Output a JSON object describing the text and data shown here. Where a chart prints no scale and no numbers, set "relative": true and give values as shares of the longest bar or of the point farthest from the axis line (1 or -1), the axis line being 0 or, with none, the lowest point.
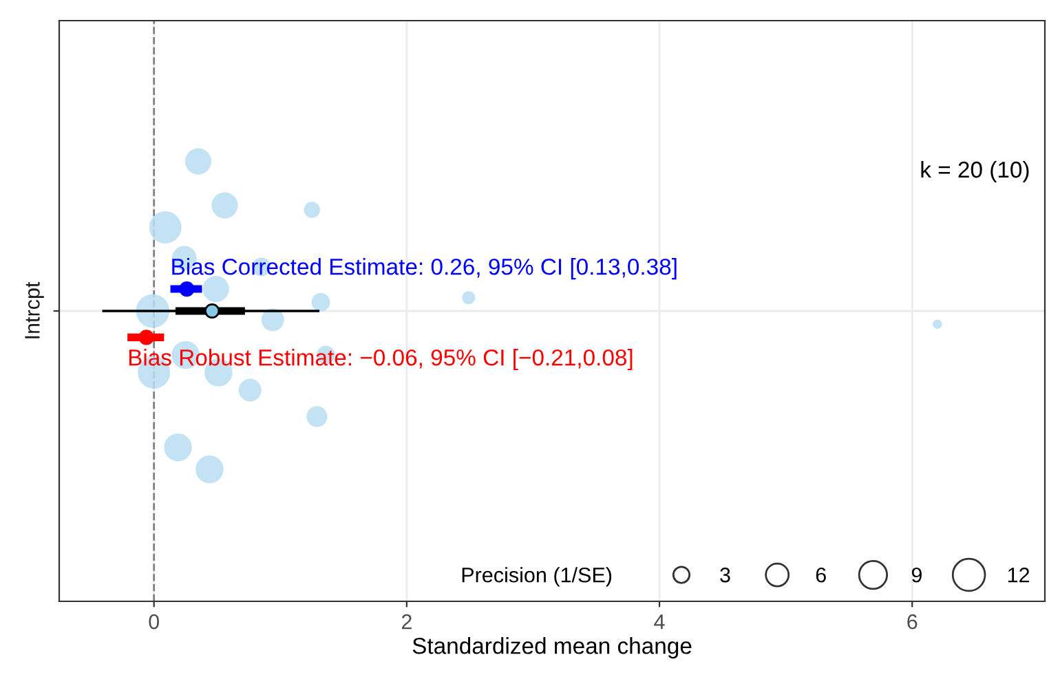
{
  "chart_data": {
    "type": "bubble",
    "xlabel": "Standardized mean change",
    "xlim": [
      -0.75,
      7.05
    ],
    "xticks": [
      0,
      2,
      4,
      6
    ],
    "relative": true,
    "grid": true,
    "legend_title": "Precision (1/SE)",
    "size_legend": [
      3,
      6,
      9,
      12
    ],
    "series": [
      {
        "color": "#b8def2",
        "x": [
          0.35,
          0.56,
          1.25,
          0.09,
          0.24,
          0.85,
          0.49,
          1.32,
          -0.01,
          0.94,
          1.36,
          0.25,
          0.0,
          0.51,
          0.76,
          1.29,
          0.19,
          0.44,
          2.49,
          6.2
        ],
        "values": [
          1.0,
          0.9,
          0.89,
          0.85,
          0.78,
          0.76,
          0.71,
          0.68,
          0.66,
          0.64,
          0.56,
          0.56,
          0.52,
          0.52,
          0.48,
          0.42,
          0.35,
          0.3,
          0.69,
          0.63
        ],
        "sizes": [
          8,
          8,
          3,
          12,
          7,
          4,
          8,
          4,
          13,
          6,
          4,
          9,
          12,
          9,
          6,
          5,
          9,
          9,
          2,
          1
        ]
      },
      {
        "type": "line",
        "color": "#000000",
        "x": [
          -0.4,
          1.3
        ],
        "values": [
          0.66,
          0.66
        ]
      },
      {
        "type": "scatter",
        "color": "#000000",
        "colors": [
          "#87c8e6"
        ],
        "marker": "circle",
        "x": [
          0.46
        ],
        "values": [
          0.66
        ],
        "xerrors": [
          [
            0.17,
            0.72
          ]
        ]
      },
      {
        "type": "scatter",
        "color": "#0000ff",
        "marker": "circle",
        "x": [
          0.26
        ],
        "values": [
          0.71
        ],
        "xerrors": [
          [
            0.13,
            0.38
          ]
        ]
      },
      {
        "type": "scatter",
        "color": "#ff0000",
        "marker": "circle",
        "x": [
          -0.06
        ],
        "values": [
          0.6
        ],
        "xerrors": [
          [
            -0.21,
            0.08
          ]
        ]
      }
    ],
    "ref_lines": [
      {
        "axis": "x",
        "value": 0,
        "color": "#808080",
        "line_style": "dashed"
      }
    ],
    "annotations": [
      {
        "text": "Bias Corrected Estimate: 0.26, 95% CI [0.13,0.38]",
        "x": 0.13,
        "y": 0.71
      },
      {
        "text": "Bias Robust Estimate: −0.06, 95% CI [−0.21,0.08]",
        "x": -0.21,
        "y": 0.6
      },
      "k = 20 (10)",
      "Intrcpt"
    ]
  }
}
